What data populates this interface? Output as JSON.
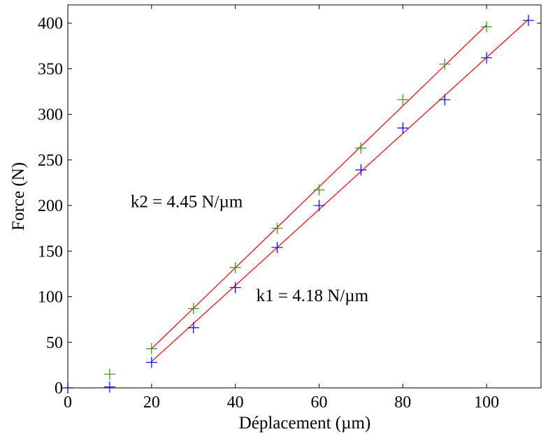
{
  "chart_data": {
    "type": "scatter",
    "title": "",
    "xlabel": "Déplacement (µm)",
    "ylabel": "Force (N)",
    "xlim": [
      0,
      113
    ],
    "ylim": [
      0,
      420
    ],
    "xticks": [
      0,
      20,
      40,
      60,
      80,
      100
    ],
    "yticks": [
      0,
      50,
      100,
      150,
      200,
      250,
      300,
      350,
      400
    ],
    "grid": false,
    "legend": "none",
    "series": [
      {
        "color": "#3a8a1e",
        "marker": "plus",
        "x": [
          0,
          10,
          20,
          30,
          40,
          50,
          60,
          70,
          80,
          90,
          100
        ],
        "y": [
          0,
          15,
          43,
          87,
          132,
          175,
          217,
          263,
          316,
          355,
          396
        ]
      },
      {
        "color": "#0000ff",
        "marker": "plus",
        "x": [
          0,
          10,
          20,
          30,
          40,
          50,
          60,
          70,
          80,
          90,
          100,
          110
        ],
        "y": [
          0,
          1,
          28,
          66,
          110,
          154,
          200,
          239,
          285,
          316,
          362,
          403
        ]
      }
    ],
    "fits": [
      {
        "color": "#ff0000",
        "x": [
          20,
          100
        ],
        "y": [
          43,
          398
        ]
      },
      {
        "color": "#ff0000",
        "x": [
          20,
          110
        ],
        "y": [
          29,
          404
        ]
      }
    ],
    "annotations": [
      {
        "text": "k2 = 4.45 N/µm",
        "x": 15,
        "y": 198
      },
      {
        "text": "k1 = 4.18 N/µm",
        "x": 45,
        "y": 95
      }
    ]
  }
}
